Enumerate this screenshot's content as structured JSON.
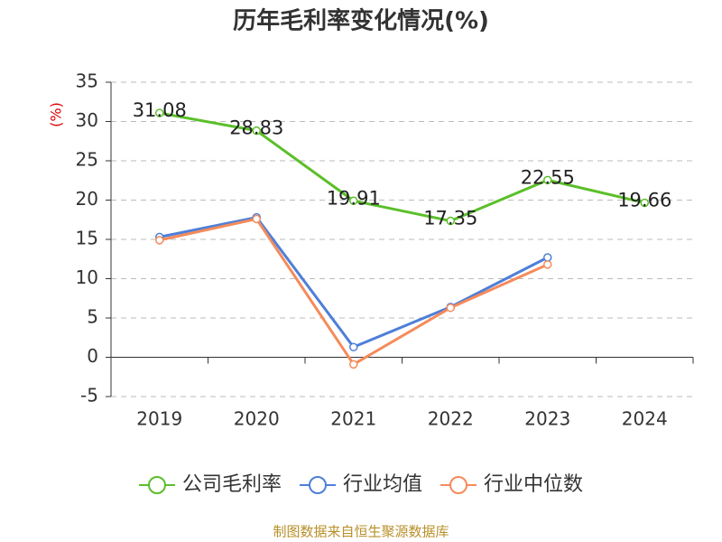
{
  "chart_data": {
    "type": "line",
    "title": "历年毛利率变化情况(%)",
    "y_label": "(%)",
    "source": "制图数据来自恒生聚源数据库",
    "categories": [
      "2019",
      "2020",
      "2021",
      "2022",
      "2023",
      "2024"
    ],
    "series": [
      {
        "name": "公司毛利率",
        "color": "#5bbf2a",
        "values": [
          31.08,
          28.83,
          19.91,
          17.35,
          22.55,
          19.66
        ],
        "labels": true
      },
      {
        "name": "行业均值",
        "color": "#4e7fd8",
        "values": [
          15.3,
          17.8,
          1.3,
          6.4,
          12.7,
          null
        ]
      },
      {
        "name": "行业中位数",
        "color": "#f58b5a",
        "values": [
          14.9,
          17.6,
          -0.9,
          6.3,
          11.8,
          null
        ]
      }
    ],
    "ylim": [
      -5,
      35
    ],
    "yticks": [
      -5,
      0,
      5,
      10,
      15,
      20,
      25,
      30,
      35
    ],
    "grid": true
  }
}
